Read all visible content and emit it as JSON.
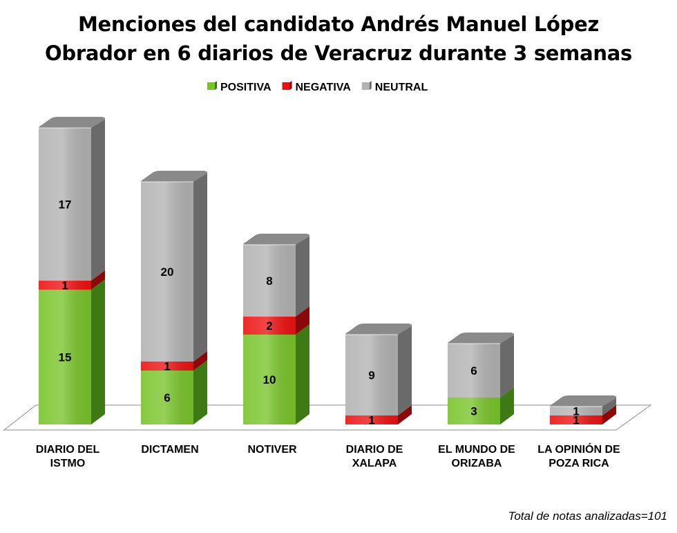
{
  "chart_data": {
    "type": "bar",
    "stacked": true,
    "style": "3d-columns",
    "title_lines": [
      "Menciones del candidato Andrés Manuel López",
      "Obrador en 6 diarios de Veracruz durante 3 semanas"
    ],
    "categories": [
      [
        "DIARIO DEL",
        "ISTMO"
      ],
      [
        "DICTAMEN"
      ],
      [
        "NOTIVER"
      ],
      [
        "DIARIO DE",
        "XALAPA"
      ],
      [
        "EL MUNDO DE",
        "ORIZABA"
      ],
      [
        "LA OPINIÓN DE",
        "POZA RICA"
      ]
    ],
    "series": [
      {
        "name": "POSITIVA",
        "color": "#78c42a",
        "side": "#3e7a14",
        "top": "#96d650",
        "values": [
          15,
          6,
          10,
          0,
          3,
          0
        ]
      },
      {
        "name": "NEGATIVA",
        "color": "#ee1111",
        "side": "#8a0808",
        "top": "#ff4a4a",
        "values": [
          1,
          1,
          2,
          1,
          0,
          1
        ]
      },
      {
        "name": "NEUTRAL",
        "color": "#b2b2b2",
        "side": "#6a6a6a",
        "top": "#8a8a8a",
        "values": [
          17,
          20,
          8,
          9,
          6,
          1
        ]
      }
    ],
    "legend_position": "top",
    "grid": false,
    "ylim": [
      0,
      35
    ]
  },
  "footer_note": "Total de notas analizadas=101"
}
